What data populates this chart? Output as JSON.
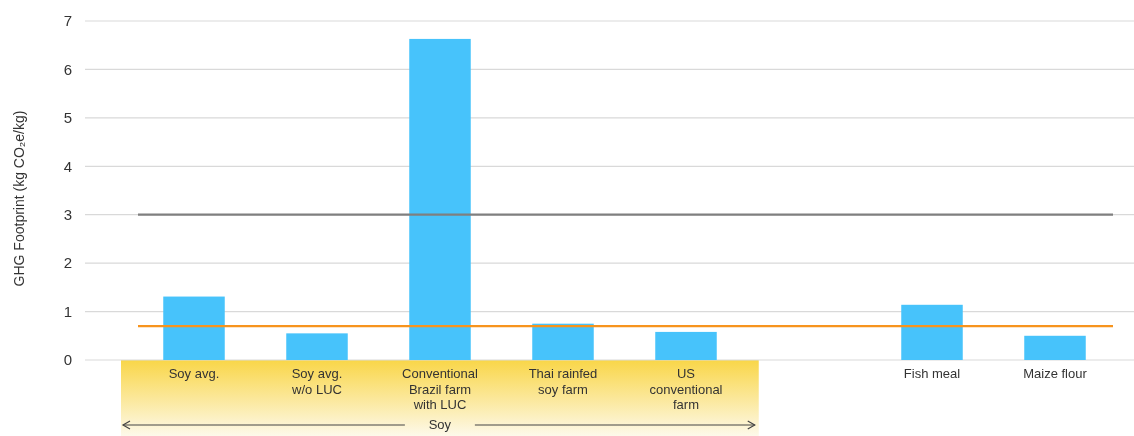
{
  "chart_data": {
    "type": "bar",
    "ylabel": "GHG Footprint (kg CO₂e/kg)",
    "categories": [
      "Soy avg.",
      "Soy avg. w/o LUC",
      "Conventional Brazil farm with LUC",
      "Thai rainfed soy farm",
      "US conventional farm",
      null,
      "Fish meal",
      "Maize flour"
    ],
    "values": [
      1.31,
      0.55,
      6.63,
      0.75,
      0.58,
      null,
      1.14,
      0.5
    ],
    "color": "#47c3fb",
    "ylim": [
      0,
      7
    ],
    "yticks": [
      0,
      1,
      2,
      3,
      4,
      5,
      6,
      7
    ],
    "grid": "y",
    "ref_lines": [
      {
        "axis": "y",
        "value": 3,
        "color": "#7f7f7f"
      },
      {
        "axis": "y",
        "value": 0.7,
        "color": "#f7941d"
      }
    ],
    "annotations": [
      "Soy"
    ]
  }
}
